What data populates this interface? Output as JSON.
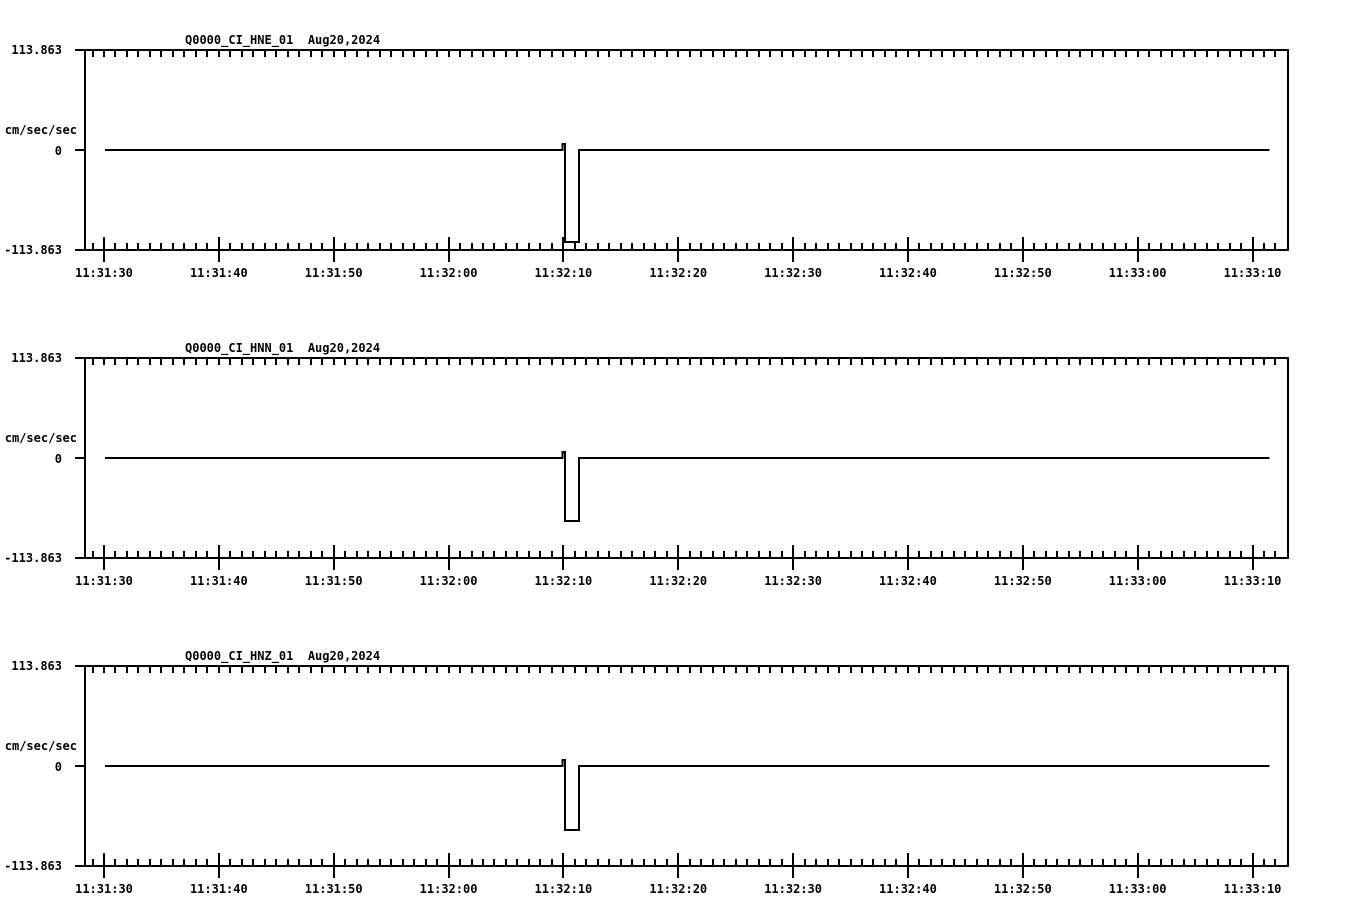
{
  "page": {
    "background_color": "#ffffff",
    "line_color": "#000000",
    "description": "Three-panel seismic acceleration waveform display (SAC-style), square calibration pulse near 11:32:10"
  },
  "chart_data": [
    {
      "type": "line",
      "title": "Q0000_CI_HNE_01  Aug20,2024",
      "station_channel": "Q0000_CI_HNE_01",
      "date": "Aug20,2024",
      "ylabel": "cm/sec/sec",
      "ytick_labels": [
        "113.863",
        "0",
        "-113.863"
      ],
      "ylim": [
        -113.863,
        113.863
      ],
      "xtick_labels": [
        "11:31:30",
        "11:31:40",
        "11:31:50",
        "11:32:00",
        "11:32:10",
        "11:32:20",
        "11:32:30",
        "11:32:40",
        "11:32:50",
        "11:33:00",
        "11:33:10"
      ],
      "x_major_interval_sec": 10,
      "x_minor_interval_sec": 1,
      "grid": "off",
      "legend": "none",
      "series": {
        "name": "HNE",
        "t_unit": "seconds after 11:31:30",
        "v_unit": "cm/sec/sec",
        "points": [
          [
            0.1,
            0
          ],
          [
            39.9,
            0
          ],
          [
            39.9,
            7
          ],
          [
            40.15,
            7
          ],
          [
            40.15,
            -104.8
          ],
          [
            41.35,
            -104.8
          ],
          [
            41.35,
            0
          ],
          [
            101.5,
            0
          ]
        ]
      }
    },
    {
      "type": "line",
      "title": "Q0000_CI_HNN_01  Aug20,2024",
      "station_channel": "Q0000_CI_HNN_01",
      "date": "Aug20,2024",
      "ylabel": "cm/sec/sec",
      "ytick_labels": [
        "113.863",
        "0",
        "-113.863"
      ],
      "ylim": [
        -113.863,
        113.863
      ],
      "xtick_labels": [
        "11:31:30",
        "11:31:40",
        "11:31:50",
        "11:32:00",
        "11:32:10",
        "11:32:20",
        "11:32:30",
        "11:32:40",
        "11:32:50",
        "11:33:00",
        "11:33:10"
      ],
      "x_major_interval_sec": 10,
      "x_minor_interval_sec": 1,
      "grid": "off",
      "legend": "none",
      "series": {
        "name": "HNN",
        "t_unit": "seconds after 11:31:30",
        "v_unit": "cm/sec/sec",
        "points": [
          [
            0.1,
            0
          ],
          [
            39.9,
            0
          ],
          [
            39.9,
            7
          ],
          [
            40.15,
            7
          ],
          [
            40.15,
            -71.7
          ],
          [
            41.35,
            -71.7
          ],
          [
            41.35,
            0
          ],
          [
            101.5,
            0
          ]
        ]
      }
    },
    {
      "type": "line",
      "title": "Q0000_CI_HNZ_01  Aug20,2024",
      "station_channel": "Q0000_CI_HNZ_01",
      "date": "Aug20,2024",
      "ylabel": "cm/sec/sec",
      "ytick_labels": [
        "113.863",
        "0",
        "-113.863"
      ],
      "ylim": [
        -113.863,
        113.863
      ],
      "xtick_labels": [
        "11:31:30",
        "11:31:40",
        "11:31:50",
        "11:32:00",
        "11:32:10",
        "11:32:20",
        "11:32:30",
        "11:32:40",
        "11:32:50",
        "11:33:00",
        "11:33:10"
      ],
      "x_major_interval_sec": 10,
      "x_minor_interval_sec": 1,
      "grid": "off",
      "legend": "none",
      "series": {
        "name": "HNZ",
        "t_unit": "seconds after 11:31:30",
        "v_unit": "cm/sec/sec",
        "points": [
          [
            0.1,
            0
          ],
          [
            39.9,
            0
          ],
          [
            39.9,
            7
          ],
          [
            40.15,
            7
          ],
          [
            40.15,
            -72.9
          ],
          [
            41.35,
            -72.9
          ],
          [
            41.35,
            0
          ],
          [
            101.5,
            0
          ]
        ]
      }
    }
  ]
}
